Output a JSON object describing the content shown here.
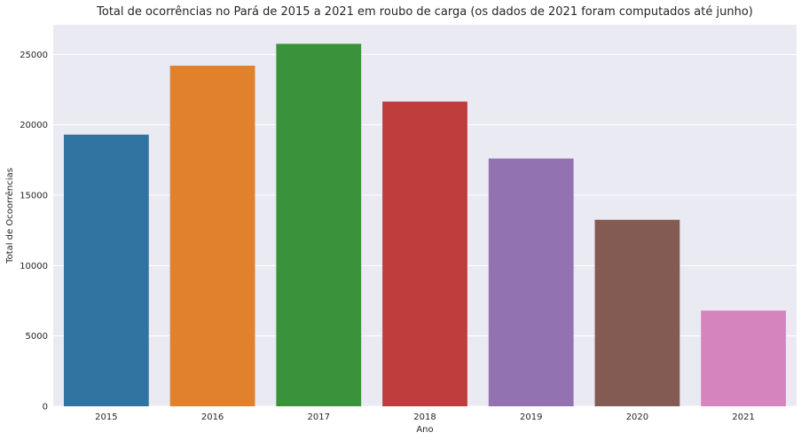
{
  "chart_data": {
    "type": "bar",
    "title": "Total de ocorrências no Pará de 2015 a 2021 em roubo de carga (os dados de 2021 foram computados até junho)",
    "xlabel": "Ano",
    "ylabel": "Total de Ocoorrências",
    "categories": [
      "2015",
      "2016",
      "2017",
      "2018",
      "2019",
      "2020",
      "2021"
    ],
    "values": [
      19300,
      24200,
      25750,
      21650,
      17600,
      13250,
      6800
    ],
    "ylim": [
      0,
      27100
    ],
    "yticks": [
      0,
      5000,
      10000,
      15000,
      20000,
      25000
    ],
    "grid": true,
    "colors": [
      "#3274a1",
      "#e1812c",
      "#3a923a",
      "#c03d3e",
      "#9372b2",
      "#845b53",
      "#d684bd"
    ],
    "background": "#eaeaf2"
  }
}
